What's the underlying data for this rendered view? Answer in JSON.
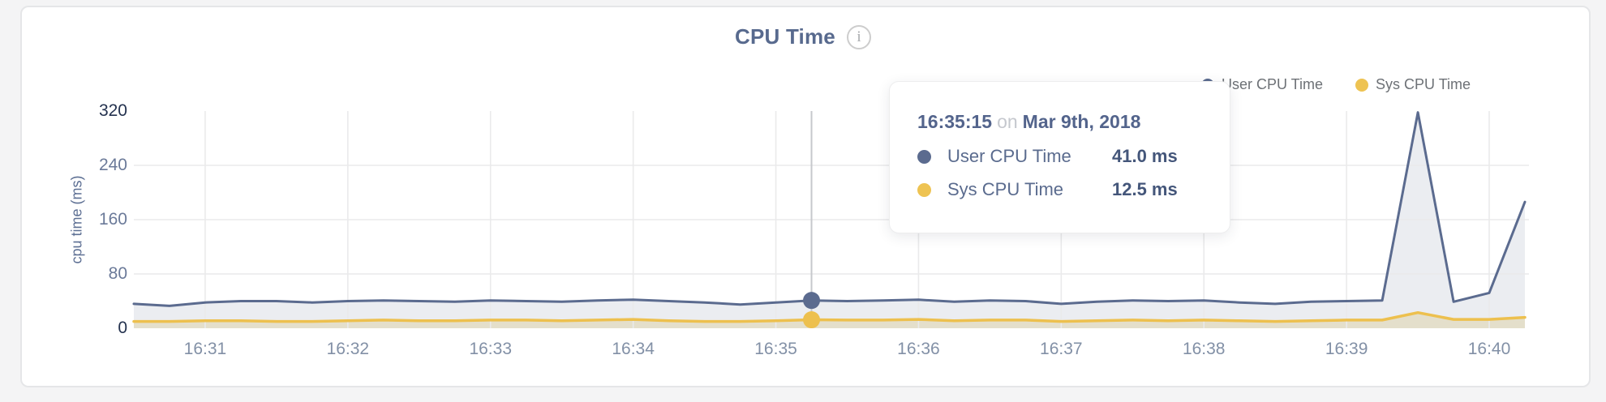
{
  "header": {
    "title": "CPU Time",
    "info_icon": "i"
  },
  "legend": {
    "items": [
      {
        "label": "User CPU Time",
        "color": "#5b6b8f"
      },
      {
        "label": "Sys CPU Time",
        "color": "#eec352"
      }
    ]
  },
  "tooltip": {
    "time": "16:35:15",
    "conjunction": "on",
    "date": "Mar 9th, 2018",
    "rows": [
      {
        "label": "User CPU Time",
        "value": "41.0 ms",
        "color": "#5b6b8f"
      },
      {
        "label": "Sys CPU Time",
        "value": "12.5 ms",
        "color": "#eec352"
      }
    ]
  },
  "chart_data": {
    "type": "area",
    "title": "CPU Time",
    "ylabel": "cpu time (ms)",
    "xlabel": "",
    "ylim": [
      0,
      320
    ],
    "grid": true,
    "legend_position": "top-right",
    "y_ticks": [
      {
        "value": 320,
        "label": "320",
        "emphasis": true
      },
      {
        "value": 240,
        "label": "240",
        "emphasis": false
      },
      {
        "value": 160,
        "label": "160",
        "emphasis": false
      },
      {
        "value": 80,
        "label": "80",
        "emphasis": false
      },
      {
        "value": 0,
        "label": "0",
        "emphasis": true
      }
    ],
    "y_gridlines": [
      240,
      160,
      80
    ],
    "x": [
      "16:30:30",
      "16:30:45",
      "16:31:00",
      "16:31:15",
      "16:31:30",
      "16:31:45",
      "16:32:00",
      "16:32:15",
      "16:32:30",
      "16:32:45",
      "16:33:00",
      "16:33:15",
      "16:33:30",
      "16:33:45",
      "16:34:00",
      "16:34:15",
      "16:34:30",
      "16:34:45",
      "16:35:00",
      "16:35:15",
      "16:35:30",
      "16:35:45",
      "16:36:00",
      "16:36:15",
      "16:36:30",
      "16:36:45",
      "16:37:00",
      "16:37:15",
      "16:37:30",
      "16:37:45",
      "16:38:00",
      "16:38:15",
      "16:38:30",
      "16:38:45",
      "16:39:00",
      "16:39:15",
      "16:39:30",
      "16:39:45",
      "16:40:00",
      "16:40:15"
    ],
    "x_tick_indices": [
      2,
      6,
      10,
      14,
      18,
      22,
      26,
      30,
      34,
      38
    ],
    "x_tick_labels": [
      "16:31",
      "16:32",
      "16:33",
      "16:34",
      "16:35",
      "16:36",
      "16:37",
      "16:38",
      "16:39",
      "16:40"
    ],
    "series": [
      {
        "name": "User CPU Time",
        "color": "#5b6b8f",
        "fill": "rgba(93,108,143,0.12)",
        "values": [
          36,
          33,
          38,
          40,
          40,
          38,
          40,
          41,
          40,
          39,
          41,
          40,
          39,
          41,
          42,
          40,
          38,
          35,
          38,
          41,
          40,
          41,
          42,
          39,
          41,
          40,
          36,
          39,
          41,
          40,
          41,
          38,
          36,
          39,
          40,
          41,
          318,
          39,
          52,
          186
        ]
      },
      {
        "name": "Sys CPU Time",
        "color": "#edc04e",
        "fill": "rgba(213,188,105,0.28)",
        "values": [
          10,
          10,
          11,
          11,
          10,
          10,
          11,
          12,
          11,
          11,
          12,
          12,
          11,
          12,
          13,
          11,
          10,
          10,
          11,
          12.5,
          12,
          12,
          13,
          11,
          12,
          12,
          10,
          11,
          12,
          11,
          12,
          11,
          10,
          11,
          12,
          12,
          23,
          13,
          13,
          16
        ]
      }
    ],
    "hover": {
      "index": 19,
      "time": "16:35:15",
      "date": "Mar 9th, 2018",
      "user_ms": 41.0,
      "sys_ms": 12.5
    }
  }
}
